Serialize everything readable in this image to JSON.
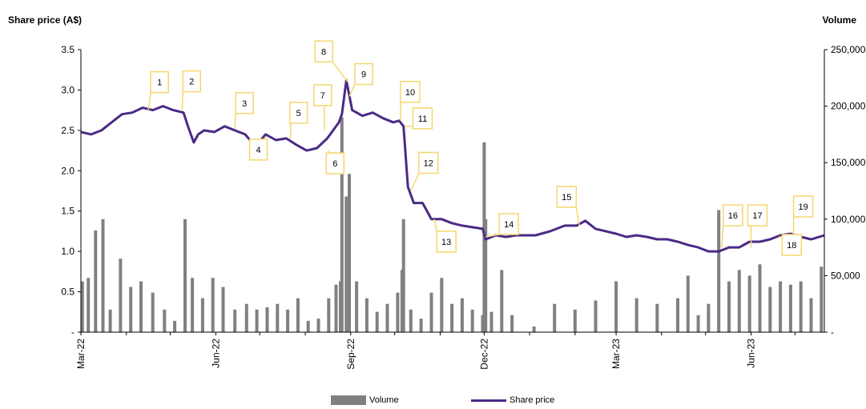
{
  "chart_data": {
    "type": "bar+line",
    "title": "",
    "ylabel_left": "Share price (A$)",
    "ylabel_right": "Volume",
    "xlabel": "",
    "ylim_left": [
      0,
      3.5
    ],
    "ylim_right": [
      0,
      250000
    ],
    "left_ticks": [
      "-",
      "0.5",
      "1.0",
      "1.5",
      "2.0",
      "2.5",
      "3.0",
      "3.5"
    ],
    "right_ticks": [
      "-",
      "50,000",
      "100,000",
      "150,000",
      "200,000",
      "250,000"
    ],
    "x_ticks": [
      "Mar-22",
      "Jun-22",
      "Sep-22",
      "Dec-22",
      "Mar-23",
      "Jun-23"
    ],
    "x_range": [
      "2022-03-01",
      "2023-07-21"
    ],
    "colors": {
      "price": "#4b2a86",
      "volume": "#808080",
      "callout": "#f5d76e"
    },
    "legend": {
      "placement": "bottom",
      "volume_label": "Volume",
      "price_label": "Share price"
    },
    "series": [
      {
        "name": "Share price",
        "kind": "line",
        "axis": "left",
        "x": [
          "2022-03-01",
          "2022-03-08",
          "2022-03-15",
          "2022-03-22",
          "2022-03-29",
          "2022-04-05",
          "2022-04-12",
          "2022-04-19",
          "2022-04-26",
          "2022-05-03",
          "2022-05-10",
          "2022-05-13",
          "2022-05-17",
          "2022-05-20",
          "2022-05-24",
          "2022-05-31",
          "2022-06-07",
          "2022-06-14",
          "2022-06-21",
          "2022-06-28",
          "2022-07-05",
          "2022-07-12",
          "2022-07-19",
          "2022-07-26",
          "2022-08-02",
          "2022-08-09",
          "2022-08-16",
          "2022-08-20",
          "2022-08-24",
          "2022-08-26",
          "2022-08-29",
          "2022-09-02",
          "2022-09-09",
          "2022-09-16",
          "2022-09-23",
          "2022-09-30",
          "2022-10-04",
          "2022-10-07",
          "2022-10-10",
          "2022-10-14",
          "2022-10-20",
          "2022-10-26",
          "2022-11-02",
          "2022-11-09",
          "2022-11-16",
          "2022-11-23",
          "2022-11-30",
          "2022-12-02",
          "2022-12-09",
          "2022-12-16",
          "2022-12-23",
          "2023-01-05",
          "2023-01-15",
          "2023-01-25",
          "2023-02-02",
          "2023-02-08",
          "2023-02-15",
          "2023-02-22",
          "2023-03-01",
          "2023-03-08",
          "2023-03-15",
          "2023-03-22",
          "2023-03-29",
          "2023-04-05",
          "2023-04-12",
          "2023-04-19",
          "2023-04-26",
          "2023-05-03",
          "2023-05-10",
          "2023-05-17",
          "2023-05-24",
          "2023-05-31",
          "2023-06-07",
          "2023-06-14",
          "2023-06-21",
          "2023-06-28",
          "2023-07-05",
          "2023-07-12",
          "2023-07-21"
        ],
        "values": [
          2.48,
          2.45,
          2.5,
          2.6,
          2.7,
          2.72,
          2.78,
          2.75,
          2.8,
          2.75,
          2.72,
          2.55,
          2.35,
          2.45,
          2.5,
          2.48,
          2.55,
          2.5,
          2.45,
          2.3,
          2.45,
          2.38,
          2.4,
          2.32,
          2.25,
          2.28,
          2.4,
          2.5,
          2.6,
          2.7,
          3.12,
          2.75,
          2.68,
          2.72,
          2.65,
          2.6,
          2.62,
          2.55,
          1.8,
          1.6,
          1.6,
          1.4,
          1.4,
          1.35,
          1.32,
          1.3,
          1.28,
          1.15,
          1.2,
          1.18,
          1.2,
          1.2,
          1.25,
          1.32,
          1.32,
          1.38,
          1.28,
          1.25,
          1.22,
          1.18,
          1.2,
          1.18,
          1.15,
          1.15,
          1.12,
          1.08,
          1.05,
          1.0,
          1.0,
          1.05,
          1.05,
          1.12,
          1.12,
          1.15,
          1.2,
          1.22,
          1.18,
          1.15,
          1.2
        ]
      },
      {
        "name": "Volume",
        "kind": "bar",
        "axis": "right",
        "x": [
          "2022-03-02",
          "2022-03-06",
          "2022-03-11",
          "2022-03-16",
          "2022-03-21",
          "2022-03-28",
          "2022-04-04",
          "2022-04-11",
          "2022-04-19",
          "2022-04-27",
          "2022-05-04",
          "2022-05-11",
          "2022-05-16",
          "2022-05-23",
          "2022-05-30",
          "2022-06-06",
          "2022-06-14",
          "2022-06-22",
          "2022-06-29",
          "2022-07-06",
          "2022-07-13",
          "2022-07-20",
          "2022-07-27",
          "2022-08-03",
          "2022-08-10",
          "2022-08-17",
          "2022-08-22",
          "2022-08-25",
          "2022-08-26",
          "2022-08-29",
          "2022-08-31",
          "2022-09-05",
          "2022-09-12",
          "2022-09-19",
          "2022-09-26",
          "2022-10-03",
          "2022-10-06",
          "2022-10-07",
          "2022-10-12",
          "2022-10-19",
          "2022-10-26",
          "2022-11-02",
          "2022-11-09",
          "2022-11-16",
          "2022-11-23",
          "2022-11-30",
          "2022-12-01",
          "2022-12-02",
          "2022-12-06",
          "2022-12-13",
          "2022-12-20",
          "2023-01-04",
          "2023-01-18",
          "2023-02-01",
          "2023-02-15",
          "2023-03-01",
          "2023-03-15",
          "2023-03-29",
          "2023-04-12",
          "2023-04-19",
          "2023-04-26",
          "2023-05-03",
          "2023-05-10",
          "2023-05-17",
          "2023-05-24",
          "2023-05-31",
          "2023-06-07",
          "2023-06-14",
          "2023-06-21",
          "2023-06-28",
          "2023-07-05",
          "2023-07-12",
          "2023-07-19"
        ],
        "values": [
          45000,
          48000,
          90000,
          100000,
          20000,
          65000,
          40000,
          45000,
          35000,
          20000,
          10000,
          100000,
          48000,
          30000,
          48000,
          40000,
          20000,
          25000,
          20000,
          22000,
          25000,
          20000,
          30000,
          10000,
          12000,
          30000,
          42000,
          45000,
          190000,
          120000,
          140000,
          45000,
          30000,
          18000,
          25000,
          35000,
          55000,
          100000,
          20000,
          12000,
          35000,
          48000,
          25000,
          30000,
          20000,
          15000,
          168000,
          100000,
          18000,
          55000,
          15000,
          5000,
          25000,
          20000,
          28000,
          45000,
          30000,
          25000,
          30000,
          50000,
          15000,
          25000,
          108000,
          45000,
          55000,
          50000,
          60000,
          40000,
          45000,
          42000,
          45000,
          30000,
          58000
        ]
      }
    ],
    "annotations": [
      {
        "label": "1",
        "x": "2022-04-16",
        "y": 2.75
      },
      {
        "label": "2",
        "x": "2022-05-09",
        "y": 2.75
      },
      {
        "label": "3",
        "x": "2022-06-14",
        "y": 2.52
      },
      {
        "label": "4",
        "x": "2022-07-05",
        "y": 2.43
      },
      {
        "label": "5",
        "x": "2022-07-22",
        "y": 2.4
      },
      {
        "label": "6",
        "x": "2022-08-17",
        "y": 2.25
      },
      {
        "label": "7",
        "x": "2022-08-14",
        "y": 2.5
      },
      {
        "label": "8",
        "x": "2022-08-30",
        "y": 3.1
      },
      {
        "label": "9",
        "x": "2022-08-31",
        "y": 2.92
      },
      {
        "label": "10",
        "x": "2022-10-05",
        "y": 2.62
      },
      {
        "label": "11",
        "x": "2022-10-08",
        "y": 2.55
      },
      {
        "label": "12",
        "x": "2022-10-12",
        "y": 1.75
      },
      {
        "label": "13",
        "x": "2022-10-28",
        "y": 1.4
      },
      {
        "label": "14",
        "x": "2022-12-02",
        "y": 1.18
      },
      {
        "label": "15",
        "x": "2023-02-04",
        "y": 1.32
      },
      {
        "label": "16",
        "x": "2023-05-12",
        "y": 1.05
      },
      {
        "label": "17",
        "x": "2023-06-01",
        "y": 1.05
      },
      {
        "label": "18",
        "x": "2023-06-20",
        "y": 1.18
      },
      {
        "label": "19",
        "x": "2023-06-30",
        "y": 1.2
      }
    ]
  }
}
